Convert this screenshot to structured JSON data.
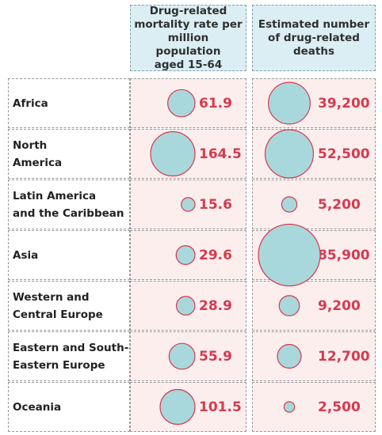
{
  "chart_data": {
    "type": "bubble-table",
    "columns": [
      "Drug-related\nmortality rate per\nmillion population\naged 15-64",
      "Estimated number\nof drug-related\ndeaths"
    ],
    "rows": [
      {
        "region": "Africa",
        "rate": 61.9,
        "rate_label": "61.9",
        "deaths": 39200,
        "deaths_label": "39,200"
      },
      {
        "region": "North\nAmerica",
        "rate": 164.5,
        "rate_label": "164.5",
        "deaths": 52500,
        "deaths_label": "52,500"
      },
      {
        "region": "Latin  America\nand the Caribbean",
        "rate": 15.6,
        "rate_label": "15.6",
        "deaths": 5200,
        "deaths_label": "5,200"
      },
      {
        "region": "Asia",
        "rate": 29.6,
        "rate_label": "29.6",
        "deaths": 85900,
        "deaths_label": "85,900"
      },
      {
        "region": "Western and\nCentral  Europe",
        "rate": 28.9,
        "rate_label": "28.9",
        "deaths": 9200,
        "deaths_label": "9,200"
      },
      {
        "region": "Eastern and South-\nEastern Europe",
        "rate": 55.9,
        "rate_label": "55.9",
        "deaths": 12700,
        "deaths_label": "12,700"
      },
      {
        "region": "Oceania",
        "rate": 101.5,
        "rate_label": "101.5",
        "deaths": 2500,
        "deaths_label": "2,500"
      }
    ],
    "bubble_fill": "#a9d8dc",
    "bubble_stroke": "#d63a4d",
    "value_color": "#d63a4d",
    "cell_background": "#fdeeee",
    "header_background": "#dbeef3"
  }
}
